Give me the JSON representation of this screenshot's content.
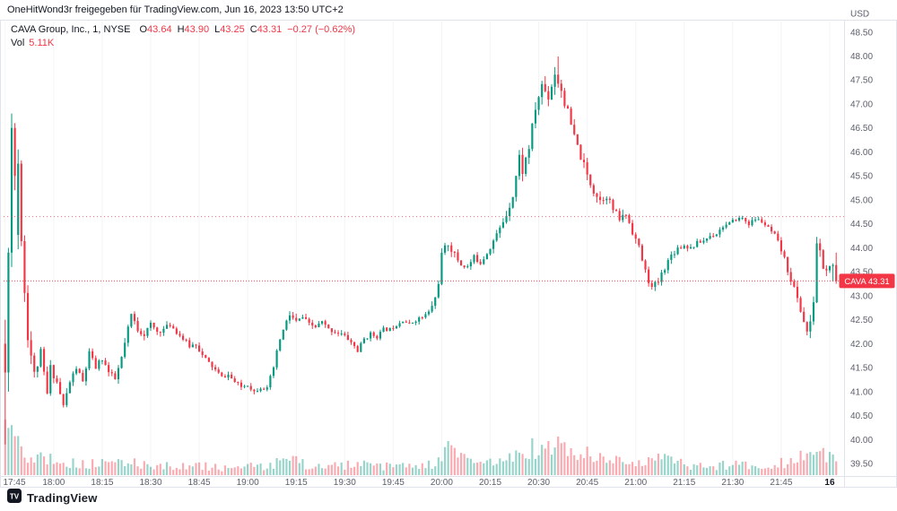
{
  "share_header": {
    "text": "OneHitWond3r freigegeben für TradingView.com, Jun 16, 2023 13:50 UTC+2"
  },
  "legend": {
    "title": "CAVA Group, Inc., 1, NYSE",
    "o_label": "O",
    "o_value": "43.64",
    "h_label": "H",
    "h_value": "43.90",
    "l_label": "L",
    "l_value": "43.25",
    "c_label": "C",
    "c_value": "43.31",
    "change": "−0.27 (−0.62%)",
    "vol_label": "Vol",
    "vol_value": "5.11K"
  },
  "price_axis": {
    "currency": "USD",
    "last_price_badge": {
      "symbol": "CAVA",
      "price": "43.31",
      "color": "#f23645"
    }
  },
  "watermark": {
    "brand": "TradingView"
  },
  "colors": {
    "up": "#089981",
    "down": "#f23645",
    "axis_text": "#5b5f6b",
    "border": "#e0e3eb",
    "grid": "#f2f4f7",
    "text_dark": "#131722"
  },
  "chart_data": {
    "type": "candlestick",
    "symbol": "CAVA Group, Inc.",
    "exchange": "NYSE",
    "interval": "1",
    "currency": "USD",
    "last": {
      "open": 43.64,
      "high": 43.9,
      "low": 43.25,
      "close": 43.31,
      "change": "−0.27",
      "change_pct": "−0.62%"
    },
    "volume_last": "5.11K",
    "grid": "faint-vertical",
    "legend_position": "top-left",
    "ylim": [
      39.24,
      48.72
    ],
    "y_ticks": [
      "48.50",
      "48.00",
      "47.50",
      "47.00",
      "46.50",
      "46.00",
      "45.50",
      "45.00",
      "44.50",
      "44.00",
      "43.50",
      "43.00",
      "42.50",
      "42.00",
      "41.50",
      "41.00",
      "40.50",
      "40.00",
      "39.50"
    ],
    "x_labels": [
      {
        "text": "17:45",
        "m": 0
      },
      {
        "text": "18:00",
        "m": 15
      },
      {
        "text": "18:15",
        "m": 30
      },
      {
        "text": "18:30",
        "m": 45
      },
      {
        "text": "18:45",
        "m": 60
      },
      {
        "text": "19:00",
        "m": 75
      },
      {
        "text": "19:15",
        "m": 90
      },
      {
        "text": "19:30",
        "m": 105
      },
      {
        "text": "19:45",
        "m": 120
      },
      {
        "text": "20:00",
        "m": 135
      },
      {
        "text": "20:15",
        "m": 150
      },
      {
        "text": "20:30",
        "m": 165
      },
      {
        "text": "20:45",
        "m": 180
      },
      {
        "text": "21:00",
        "m": 195
      },
      {
        "text": "21:15",
        "m": 210
      },
      {
        "text": "21:30",
        "m": 225
      },
      {
        "text": "21:45",
        "m": 240
      },
      {
        "text": "16",
        "m": 255,
        "emphasis": true
      }
    ],
    "minutes_span": 258,
    "seed": 11,
    "up_color": "#089981",
    "down_color": "#f23645",
    "dotted_levels": [
      44.65
    ],
    "last_price_line": 43.31,
    "close_waypoints": [
      [
        0,
        41.5
      ],
      [
        1,
        43.9
      ],
      [
        2,
        46.5
      ],
      [
        3,
        45.5
      ],
      [
        4,
        44.3
      ],
      [
        5,
        45.8
      ],
      [
        6,
        44.3
      ],
      [
        7,
        43.1
      ],
      [
        8,
        42.2
      ],
      [
        10,
        41.35
      ],
      [
        12,
        41.8
      ],
      [
        14,
        40.95
      ],
      [
        15,
        41.5
      ],
      [
        17,
        41.2
      ],
      [
        19,
        40.7
      ],
      [
        21,
        41.2
      ],
      [
        23,
        41.5
      ],
      [
        25,
        41.2
      ],
      [
        27,
        41.8
      ],
      [
        29,
        41.5
      ],
      [
        31,
        41.7
      ],
      [
        33,
        41.4
      ],
      [
        35,
        41.25
      ],
      [
        37,
        41.7
      ],
      [
        39,
        42.3
      ],
      [
        40,
        42.6
      ],
      [
        42,
        42.3
      ],
      [
        44,
        42.2
      ],
      [
        46,
        42.4
      ],
      [
        48,
        42.25
      ],
      [
        50,
        42.3
      ],
      [
        52,
        42.4
      ],
      [
        54,
        42.25
      ],
      [
        56,
        42.1
      ],
      [
        58,
        41.95
      ],
      [
        60,
        42.0
      ],
      [
        62,
        41.75
      ],
      [
        64,
        41.6
      ],
      [
        66,
        41.45
      ],
      [
        68,
        41.3
      ],
      [
        70,
        41.35
      ],
      [
        72,
        41.2
      ],
      [
        74,
        41.1
      ],
      [
        76,
        41.15
      ],
      [
        78,
        41.0
      ],
      [
        80,
        41.1
      ],
      [
        82,
        41.05
      ],
      [
        84,
        41.5
      ],
      [
        86,
        42.1
      ],
      [
        88,
        42.45
      ],
      [
        89,
        42.6
      ],
      [
        91,
        42.45
      ],
      [
        93,
        42.55
      ],
      [
        95,
        42.4
      ],
      [
        97,
        42.35
      ],
      [
        99,
        42.45
      ],
      [
        101,
        42.3
      ],
      [
        103,
        42.25
      ],
      [
        105,
        42.2
      ],
      [
        107,
        42.1
      ],
      [
        109,
        41.95
      ],
      [
        110,
        41.85
      ],
      [
        112,
        42.1
      ],
      [
        114,
        42.2
      ],
      [
        116,
        42.15
      ],
      [
        118,
        42.3
      ],
      [
        120,
        42.3
      ],
      [
        122,
        42.4
      ],
      [
        124,
        42.5
      ],
      [
        126,
        42.4
      ],
      [
        128,
        42.5
      ],
      [
        130,
        42.55
      ],
      [
        132,
        42.65
      ],
      [
        134,
        42.95
      ],
      [
        135,
        43.3
      ],
      [
        136,
        43.85
      ],
      [
        138,
        44.1
      ],
      [
        140,
        43.85
      ],
      [
        142,
        43.65
      ],
      [
        144,
        43.6
      ],
      [
        146,
        43.8
      ],
      [
        148,
        43.7
      ],
      [
        150,
        43.9
      ],
      [
        152,
        44.15
      ],
      [
        154,
        44.4
      ],
      [
        156,
        44.7
      ],
      [
        158,
        45.1
      ],
      [
        160,
        45.9
      ],
      [
        161,
        45.6
      ],
      [
        163,
        46.1
      ],
      [
        165,
        46.9
      ],
      [
        167,
        47.4
      ],
      [
        169,
        47.15
      ],
      [
        171,
        47.65
      ],
      [
        173,
        47.3
      ],
      [
        175,
        46.8
      ],
      [
        177,
        46.3
      ],
      [
        179,
        45.9
      ],
      [
        181,
        45.5
      ],
      [
        183,
        45.2
      ],
      [
        185,
        45.0
      ],
      [
        187,
        45.1
      ],
      [
        189,
        44.8
      ],
      [
        191,
        44.6
      ],
      [
        193,
        44.7
      ],
      [
        195,
        44.35
      ],
      [
        197,
        44.0
      ],
      [
        199,
        43.5
      ],
      [
        201,
        43.15
      ],
      [
        203,
        43.3
      ],
      [
        205,
        43.6
      ],
      [
        207,
        43.85
      ],
      [
        209,
        44.0
      ],
      [
        211,
        44.05
      ],
      [
        213,
        44.0
      ],
      [
        215,
        44.1
      ],
      [
        217,
        44.15
      ],
      [
        219,
        44.25
      ],
      [
        221,
        44.3
      ],
      [
        223,
        44.45
      ],
      [
        225,
        44.5
      ],
      [
        227,
        44.6
      ],
      [
        229,
        44.62
      ],
      [
        231,
        44.5
      ],
      [
        233,
        44.6
      ],
      [
        235,
        44.55
      ],
      [
        237,
        44.4
      ],
      [
        239,
        44.25
      ],
      [
        241,
        43.95
      ],
      [
        243,
        43.55
      ],
      [
        245,
        43.15
      ],
      [
        247,
        42.7
      ],
      [
        249,
        42.25
      ],
      [
        250,
        42.4
      ],
      [
        251,
        42.9
      ],
      [
        252,
        44.1
      ],
      [
        253,
        43.9
      ],
      [
        254,
        43.6
      ],
      [
        255,
        43.5
      ],
      [
        256,
        43.64
      ],
      [
        257,
        43.31
      ]
    ],
    "volatility_waypoints": [
      [
        0,
        1.5
      ],
      [
        2,
        1.3
      ],
      [
        4,
        1.1
      ],
      [
        6,
        0.8
      ],
      [
        8,
        0.55
      ],
      [
        10,
        0.4
      ],
      [
        13,
        0.32
      ],
      [
        16,
        0.3
      ],
      [
        20,
        0.26
      ],
      [
        25,
        0.24
      ],
      [
        30,
        0.26
      ],
      [
        35,
        0.24
      ],
      [
        40,
        0.28
      ],
      [
        45,
        0.22
      ],
      [
        50,
        0.2
      ],
      [
        55,
        0.2
      ],
      [
        60,
        0.2
      ],
      [
        65,
        0.18
      ],
      [
        70,
        0.16
      ],
      [
        75,
        0.16
      ],
      [
        80,
        0.18
      ],
      [
        84,
        0.26
      ],
      [
        88,
        0.28
      ],
      [
        92,
        0.2
      ],
      [
        100,
        0.18
      ],
      [
        108,
        0.2
      ],
      [
        116,
        0.16
      ],
      [
        124,
        0.16
      ],
      [
        130,
        0.18
      ],
      [
        134,
        0.3
      ],
      [
        137,
        0.34
      ],
      [
        141,
        0.26
      ],
      [
        146,
        0.22
      ],
      [
        151,
        0.24
      ],
      [
        156,
        0.3
      ],
      [
        160,
        0.4
      ],
      [
        164,
        0.42
      ],
      [
        168,
        0.44
      ],
      [
        172,
        0.5
      ],
      [
        176,
        0.42
      ],
      [
        180,
        0.38
      ],
      [
        185,
        0.32
      ],
      [
        190,
        0.28
      ],
      [
        195,
        0.3
      ],
      [
        200,
        0.3
      ],
      [
        205,
        0.26
      ],
      [
        210,
        0.2
      ],
      [
        215,
        0.18
      ],
      [
        220,
        0.16
      ],
      [
        226,
        0.16
      ],
      [
        232,
        0.16
      ],
      [
        238,
        0.2
      ],
      [
        242,
        0.28
      ],
      [
        246,
        0.32
      ],
      [
        250,
        0.36
      ],
      [
        252,
        0.4
      ],
      [
        254,
        0.3
      ],
      [
        257,
        0.24
      ]
    ],
    "volume_waypoints": [
      [
        0,
        1.0
      ],
      [
        3,
        0.9
      ],
      [
        6,
        0.6
      ],
      [
        9,
        0.45
      ],
      [
        12,
        0.4
      ],
      [
        15,
        0.45
      ],
      [
        18,
        0.3
      ],
      [
        22,
        0.26
      ],
      [
        26,
        0.24
      ],
      [
        30,
        0.28
      ],
      [
        34,
        0.24
      ],
      [
        38,
        0.3
      ],
      [
        42,
        0.28
      ],
      [
        46,
        0.24
      ],
      [
        50,
        0.22
      ],
      [
        55,
        0.2
      ],
      [
        60,
        0.22
      ],
      [
        65,
        0.18
      ],
      [
        70,
        0.16
      ],
      [
        75,
        0.2
      ],
      [
        80,
        0.18
      ],
      [
        84,
        0.3
      ],
      [
        88,
        0.36
      ],
      [
        92,
        0.26
      ],
      [
        96,
        0.22
      ],
      [
        100,
        0.2
      ],
      [
        104,
        0.22
      ],
      [
        108,
        0.26
      ],
      [
        112,
        0.22
      ],
      [
        116,
        0.2
      ],
      [
        120,
        0.2
      ],
      [
        124,
        0.22
      ],
      [
        128,
        0.2
      ],
      [
        132,
        0.24
      ],
      [
        135,
        0.5
      ],
      [
        137,
        0.62
      ],
      [
        139,
        0.45
      ],
      [
        142,
        0.35
      ],
      [
        145,
        0.3
      ],
      [
        148,
        0.28
      ],
      [
        151,
        0.32
      ],
      [
        154,
        0.35
      ],
      [
        157,
        0.4
      ],
      [
        160,
        0.52
      ],
      [
        163,
        0.6
      ],
      [
        166,
        0.55
      ],
      [
        169,
        0.6
      ],
      [
        172,
        0.68
      ],
      [
        175,
        0.55
      ],
      [
        178,
        0.5
      ],
      [
        181,
        0.42
      ],
      [
        184,
        0.38
      ],
      [
        187,
        0.35
      ],
      [
        190,
        0.32
      ],
      [
        193,
        0.3
      ],
      [
        196,
        0.34
      ],
      [
        199,
        0.4
      ],
      [
        202,
        0.44
      ],
      [
        205,
        0.32
      ],
      [
        208,
        0.28
      ],
      [
        211,
        0.24
      ],
      [
        214,
        0.22
      ],
      [
        217,
        0.2
      ],
      [
        220,
        0.22
      ],
      [
        223,
        0.24
      ],
      [
        226,
        0.26
      ],
      [
        229,
        0.24
      ],
      [
        232,
        0.22
      ],
      [
        235,
        0.24
      ],
      [
        238,
        0.26
      ],
      [
        241,
        0.3
      ],
      [
        244,
        0.36
      ],
      [
        247,
        0.44
      ],
      [
        250,
        0.55
      ],
      [
        252,
        0.5
      ],
      [
        254,
        0.4
      ],
      [
        256,
        0.35
      ],
      [
        257,
        0.3
      ]
    ],
    "candle_overrides": [
      {
        "i": 0,
        "o": 42.0,
        "h": 42.5,
        "l": 39.9,
        "c": 41.4
      },
      {
        "i": 1,
        "o": 41.4,
        "h": 44.0,
        "l": 41.0,
        "c": 43.9
      },
      {
        "i": 2,
        "o": 43.9,
        "h": 46.8,
        "l": 43.6,
        "c": 46.5
      },
      {
        "i": 3,
        "o": 46.5,
        "h": 46.6,
        "l": 45.2,
        "c": 45.5
      },
      {
        "i": 171,
        "h": 47.99
      },
      {
        "i": 256,
        "c": 43.64
      },
      {
        "i": 257,
        "o": 43.64,
        "h": 43.9,
        "l": 43.25,
        "c": 43.31
      }
    ],
    "volume_overrides": [
      {
        "i": 0,
        "v": 1.0
      },
      {
        "i": 1,
        "v": 0.85
      },
      {
        "i": 2,
        "v": 0.9
      }
    ]
  }
}
